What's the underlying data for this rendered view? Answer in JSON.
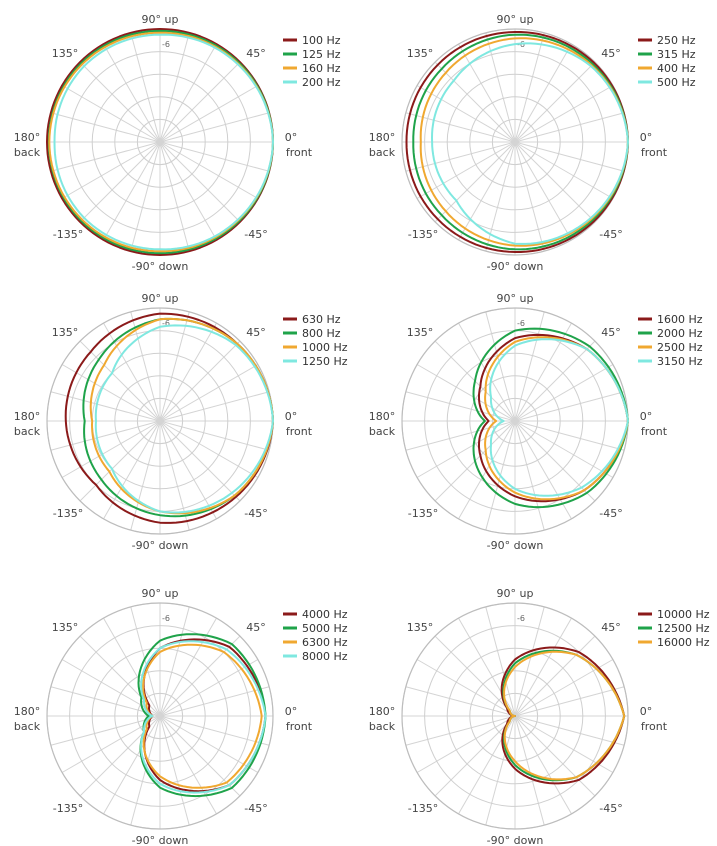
{
  "angle_labels": {
    "up": "90° up",
    "a45": "45°",
    "a135": "135°",
    "back1": "180°",
    "back2": "back",
    "front1": "0°",
    "front2": "front",
    "am135": "-135°",
    "am45": "-45°",
    "down": "-90° down"
  },
  "ring_label": "-6",
  "chart_data": [
    {
      "type": "line",
      "polar": true,
      "angle_unit": "degrees",
      "radial_range": [
        -30,
        0
      ],
      "series": [
        {
          "name": "100 Hz",
          "color": "#8b1a1a",
          "angles": [
            0,
            45,
            90,
            135,
            180,
            225,
            270,
            315
          ],
          "values": [
            0,
            0,
            0,
            0,
            0,
            0,
            0,
            0
          ]
        },
        {
          "name": "125 Hz",
          "color": "#1fa34a",
          "angles": [
            0,
            45,
            90,
            135,
            180,
            225,
            270,
            315
          ],
          "values": [
            0,
            -0.3,
            -0.5,
            -0.4,
            -0.5,
            -0.4,
            -0.5,
            -0.3
          ]
        },
        {
          "name": "160 Hz",
          "color": "#f0a830",
          "angles": [
            0,
            45,
            90,
            135,
            180,
            225,
            270,
            315
          ],
          "values": [
            0,
            -0.6,
            -1,
            -0.8,
            -0.6,
            -0.8,
            -1,
            -0.6
          ]
        },
        {
          "name": "200 Hz",
          "color": "#7fe8e0",
          "angles": [
            0,
            45,
            90,
            135,
            180,
            225,
            270,
            315
          ],
          "values": [
            0,
            -0.8,
            -1.5,
            -1.5,
            -2,
            -1.5,
            -1.5,
            -0.8
          ]
        }
      ]
    },
    {
      "type": "line",
      "polar": true,
      "angle_unit": "degrees",
      "radial_range": [
        -30,
        0
      ],
      "series": [
        {
          "name": "250 Hz",
          "color": "#8b1a1a",
          "angles": [
            0,
            45,
            90,
            135,
            180,
            225,
            270,
            315
          ],
          "values": [
            0,
            -0.3,
            -0.8,
            -1,
            -1.2,
            -1,
            -0.8,
            -0.3
          ]
        },
        {
          "name": "315 Hz",
          "color": "#1fa34a",
          "angles": [
            0,
            45,
            90,
            135,
            180,
            225,
            270,
            315
          ],
          "values": [
            0,
            -0.8,
            -1.5,
            -2.5,
            -3,
            -2.5,
            -1.5,
            -0.8
          ]
        },
        {
          "name": "400 Hz",
          "color": "#f0a830",
          "angles": [
            0,
            45,
            90,
            135,
            180,
            225,
            270,
            315
          ],
          "values": [
            0,
            -1.2,
            -2.5,
            -4,
            -5,
            -4,
            -2.5,
            -1.2
          ]
        },
        {
          "name": "500 Hz",
          "color": "#7fe8e0",
          "angles": [
            0,
            45,
            90,
            135,
            180,
            225,
            270,
            315
          ],
          "values": [
            0,
            -1.5,
            -4,
            -7,
            -8,
            -8,
            -3,
            -1.5
          ]
        }
      ]
    },
    {
      "type": "line",
      "polar": true,
      "angle_unit": "degrees",
      "radial_range": [
        -30,
        0
      ],
      "series": [
        {
          "name": "630 Hz",
          "color": "#8b1a1a",
          "angles": [
            0,
            45,
            90,
            135,
            180,
            225,
            270,
            315
          ],
          "values": [
            0,
            -1,
            -1.5,
            -4,
            -5,
            -6,
            -3,
            -1.5
          ]
        },
        {
          "name": "800 Hz",
          "color": "#1fa34a",
          "angles": [
            0,
            45,
            90,
            135,
            180,
            225,
            270,
            315
          ],
          "values": [
            0,
            -1,
            -3,
            -7,
            -10,
            -8,
            -5,
            -2
          ]
        },
        {
          "name": "1000 Hz",
          "color": "#f0a830",
          "angles": [
            0,
            45,
            90,
            135,
            180,
            225,
            270,
            315
          ],
          "values": [
            0,
            -1,
            -3,
            -9,
            -12,
            -11,
            -6,
            -2
          ]
        },
        {
          "name": "1250 Hz",
          "color": "#7fe8e0",
          "angles": [
            0,
            45,
            90,
            135,
            180,
            225,
            270,
            315
          ],
          "values": [
            0,
            -1.5,
            -5,
            -12,
            -13,
            -12,
            -6,
            -3
          ]
        }
      ]
    },
    {
      "type": "line",
      "polar": true,
      "angle_unit": "degrees",
      "radial_range": [
        -30,
        0
      ],
      "series": [
        {
          "name": "1600 Hz",
          "color": "#8b1a1a",
          "angles": [
            0,
            45,
            90,
            135,
            180,
            225,
            270,
            315
          ],
          "values": [
            0,
            -3,
            -8,
            -17,
            -23,
            -17,
            -10,
            -4
          ]
        },
        {
          "name": "2000 Hz",
          "color": "#1fa34a",
          "angles": [
            0,
            45,
            90,
            135,
            180,
            225,
            270,
            315
          ],
          "values": [
            0,
            -2,
            -6,
            -15,
            -22,
            -15,
            -8,
            -3
          ]
        },
        {
          "name": "2500 Hz",
          "color": "#f0a830",
          "angles": [
            0,
            45,
            90,
            135,
            180,
            225,
            270,
            315
          ],
          "values": [
            0,
            -3,
            -9,
            -19,
            -25,
            -19,
            -11,
            -4
          ]
        },
        {
          "name": "3150 Hz",
          "color": "#7fe8e0",
          "angles": [
            0,
            45,
            90,
            135,
            180,
            225,
            270,
            315
          ],
          "values": [
            0,
            -3,
            -10,
            -21,
            -27,
            -21,
            -12,
            -5
          ]
        }
      ]
    },
    {
      "type": "line",
      "polar": true,
      "angle_unit": "degrees",
      "radial_range": [
        -30,
        0
      ],
      "series": [
        {
          "name": "4000 Hz",
          "color": "#8b1a1a",
          "angles": [
            0,
            45,
            90,
            135,
            180,
            225,
            270,
            315
          ],
          "values": [
            -2,
            -4,
            -12,
            -26,
            -28,
            -26,
            -13,
            -4
          ]
        },
        {
          "name": "5000 Hz",
          "color": "#1fa34a",
          "angles": [
            0,
            45,
            90,
            135,
            180,
            225,
            270,
            315
          ],
          "values": [
            -2,
            -3,
            -10,
            -23,
            -27,
            -24,
            -11,
            -3
          ]
        },
        {
          "name": "6300 Hz",
          "color": "#f0a830",
          "angles": [
            0,
            45,
            90,
            135,
            180,
            225,
            270,
            315
          ],
          "values": [
            -3,
            -6,
            -13,
            -25,
            -28,
            -25,
            -14,
            -5
          ]
        },
        {
          "name": "8000 Hz",
          "color": "#7fe8e0",
          "angles": [
            0,
            45,
            90,
            135,
            180,
            225,
            270,
            315
          ],
          "values": [
            -2,
            -5,
            -12,
            -24,
            -28,
            -24,
            -12,
            -4
          ]
        }
      ]
    },
    {
      "type": "line",
      "polar": true,
      "angle_unit": "degrees",
      "radial_range": [
        -30,
        0
      ],
      "series": [
        {
          "name": "10000 Hz",
          "color": "#8b1a1a",
          "angles": [
            0,
            45,
            90,
            135,
            180,
            225,
            270,
            315
          ],
          "values": [
            -1,
            -6,
            -15,
            -27,
            -30,
            -27,
            -16,
            -6
          ]
        },
        {
          "name": "12500 Hz",
          "color": "#1fa34a",
          "angles": [
            0,
            45,
            90,
            135,
            180,
            225,
            270,
            315
          ],
          "values": [
            -1,
            -7,
            -16,
            -28,
            -30,
            -28,
            -17,
            -7
          ]
        },
        {
          "name": "16000 Hz",
          "color": "#f0a830",
          "angles": [
            0,
            45,
            90,
            135,
            180,
            225,
            270,
            315
          ],
          "values": [
            -1,
            -7,
            -17,
            -28,
            -30,
            -28,
            -18,
            -7
          ]
        }
      ]
    }
  ]
}
